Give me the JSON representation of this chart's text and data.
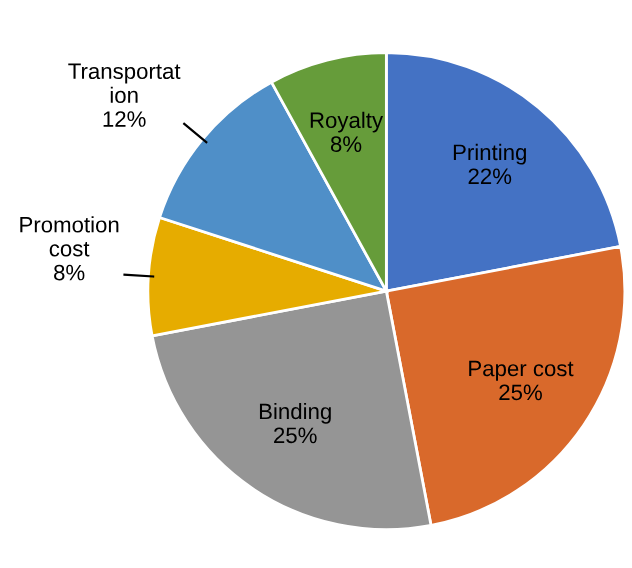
{
  "chart_data": {
    "type": "pie",
    "categories": [
      "Printing",
      "Paper cost",
      "Binding",
      "Promotion\ncost",
      "Transportat\nion",
      "Royalty"
    ],
    "value_labels": [
      "22%",
      "25%",
      "25%",
      "8%",
      "12%",
      "8%"
    ],
    "values": [
      22,
      25,
      25,
      8,
      12,
      8
    ],
    "colors": [
      "#4472c4",
      "#d9692b",
      "#959595",
      "#e6ac00",
      "#4f8fc8",
      "#669c3a"
    ]
  }
}
